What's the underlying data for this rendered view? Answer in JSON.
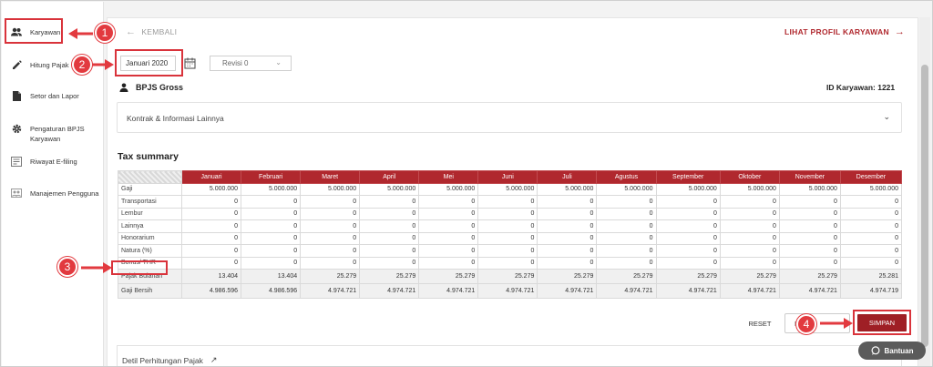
{
  "sidebar": {
    "items": [
      {
        "label": "Karyawan",
        "icon": "users-icon"
      },
      {
        "label": "Hitung Pajak",
        "icon": "pencil-icon"
      },
      {
        "label": "Setor dan Lapor",
        "icon": "document-icon"
      },
      {
        "label": "Pengaturan BPJS Karyawan",
        "icon": "gear-icon"
      },
      {
        "label": "Riwayat E-filing",
        "icon": "history-icon"
      },
      {
        "label": "Manajemen Pengguna",
        "icon": "user-group-icon"
      }
    ]
  },
  "header": {
    "back_label": "KEMBALI",
    "profile_link": "LIHAT PROFIL KARYAWAN"
  },
  "filters": {
    "period_value": "Januari 2020",
    "revisi_value": "Revisi 0"
  },
  "section": {
    "title": "BPJS Gross",
    "employee_id": "ID Karyawan: 1221"
  },
  "accordion": {
    "label": "Kontrak & Informasi Lainnya"
  },
  "tax_summary": {
    "title": "Tax summary",
    "months": [
      "Januari",
      "Februari",
      "Maret",
      "April",
      "Mei",
      "Juni",
      "Juli",
      "Agustus",
      "September",
      "Oktober",
      "November",
      "Desember"
    ],
    "rows": [
      {
        "label": "Gaji",
        "values": [
          "5.000.000",
          "5.000.000",
          "5.000.000",
          "5.000.000",
          "5.000.000",
          "5.000.000",
          "5.000.000",
          "5.000.000",
          "5.000.000",
          "5.000.000",
          "5.000.000",
          "5.000.000"
        ]
      },
      {
        "label": "Transportasi",
        "values": [
          "0",
          "0",
          "0",
          "0",
          "0",
          "0",
          "0",
          "0",
          "0",
          "0",
          "0",
          "0"
        ]
      },
      {
        "label": "Lembur",
        "values": [
          "0",
          "0",
          "0",
          "0",
          "0",
          "0",
          "0",
          "0",
          "0",
          "0",
          "0",
          "0"
        ]
      },
      {
        "label": "Lainnya",
        "values": [
          "0",
          "0",
          "0",
          "0",
          "0",
          "0",
          "0",
          "0",
          "0",
          "0",
          "0",
          "0"
        ]
      },
      {
        "label": "Honorarium",
        "values": [
          "0",
          "0",
          "0",
          "0",
          "0",
          "0",
          "0",
          "0",
          "0",
          "0",
          "0",
          "0"
        ]
      },
      {
        "label": "Natura (%)",
        "values": [
          "0",
          "0",
          "0",
          "0",
          "0",
          "0",
          "0",
          "0",
          "0",
          "0",
          "0",
          "0"
        ]
      },
      {
        "label": "Bonus/ THR",
        "values": [
          "0",
          "0",
          "0",
          "0",
          "0",
          "0",
          "0",
          "0",
          "0",
          "0",
          "0",
          "0"
        ]
      }
    ],
    "summary_rows": [
      {
        "label": "Pajak Bulanan",
        "values": [
          "13.404",
          "13.404",
          "25.279",
          "25.279",
          "25.279",
          "25.279",
          "25.279",
          "25.279",
          "25.279",
          "25.279",
          "25.279",
          "25.281"
        ]
      },
      {
        "label": "Gaji Bersih",
        "values": [
          "4.986.596",
          "4.986.596",
          "4.974.721",
          "4.974.721",
          "4.974.721",
          "4.974.721",
          "4.974.721",
          "4.974.721",
          "4.974.721",
          "4.974.721",
          "4.974.721",
          "4.974.719"
        ]
      }
    ]
  },
  "actions": {
    "reset_label": "RESET",
    "ghost_label": "N",
    "save_label": "SIMPAN"
  },
  "detail": {
    "label": "Detil Perhitungan Pajak"
  },
  "help": {
    "label": "Bantuan"
  },
  "callouts": [
    "1",
    "2",
    "3",
    "4"
  ],
  "colors": {
    "brand_red": "#b0282e",
    "callout_red": "#e23a3f",
    "save_button": "#9f1f25",
    "help_button": "#5b5b5b"
  }
}
